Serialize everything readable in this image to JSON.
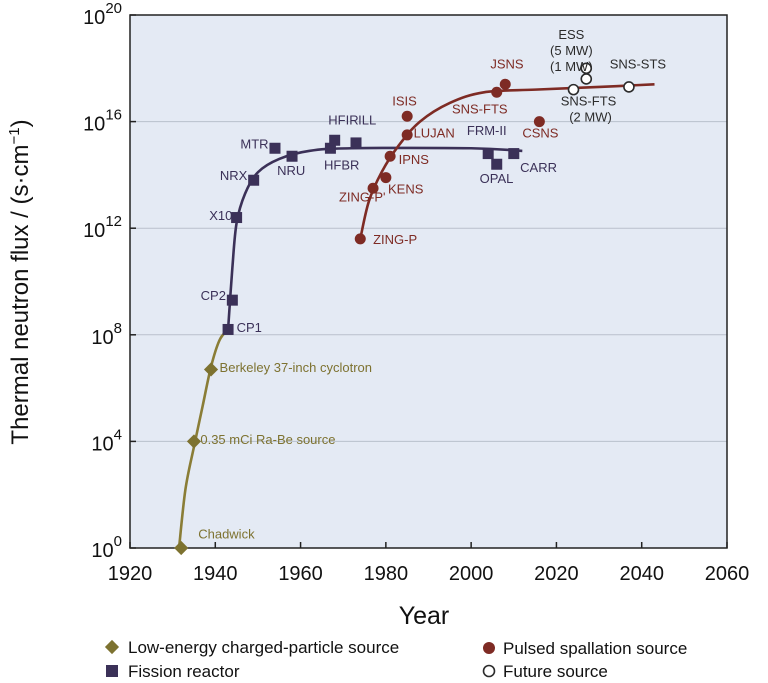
{
  "chart_data": {
    "type": "scatter",
    "xlabel": "Year",
    "ylabel_main": "Thermal neutron flux / (s·cm",
    "ylabel_sup": "−1",
    "ylabel_tail": ")",
    "xlim": [
      1920,
      2060
    ],
    "ylim_log10": [
      0,
      20
    ],
    "y_scale": "log",
    "grid": "horizontal",
    "x_ticks": [
      "1920",
      "1940",
      "1960",
      "1980",
      "2000",
      "2020",
      "2040",
      "2060"
    ],
    "y_ticks": [
      {
        "base": "10",
        "exp": "0"
      },
      {
        "base": "10",
        "exp": "4"
      },
      {
        "base": "10",
        "exp": "8"
      },
      {
        "base": "10",
        "exp": "12"
      },
      {
        "base": "10",
        "exp": "16"
      },
      {
        "base": "10",
        "exp": "20"
      }
    ],
    "colors": {
      "plot_bg": "#e4eaf4",
      "grid": "#b9c0cc",
      "charged": "#7d7230",
      "charged_line": "#8a7d36",
      "fission": "#3b3158",
      "spallation": "#7e2b24",
      "future_fill": "#ffffff",
      "future_stroke": "#2b2b2b"
    },
    "series": [
      {
        "name": "Low-energy charged-particle source",
        "marker": "diamond",
        "points": [
          {
            "label": "Chadwick",
            "x": 1932,
            "log10y": 0.0
          },
          {
            "label": "0.35 mCi Ra-Be source",
            "x": 1935,
            "log10y": 4.0
          },
          {
            "label": "Berkeley 37-inch cyclotron",
            "x": 1939,
            "log10y": 6.7
          }
        ]
      },
      {
        "name": "Fission reactor",
        "marker": "square",
        "points": [
          {
            "label": "CP1",
            "x": 1943,
            "log10y": 8.2
          },
          {
            "label": "CP2",
            "x": 1944,
            "log10y": 9.3
          },
          {
            "label": "X10",
            "x": 1945,
            "log10y": 12.4
          },
          {
            "label": "NRX",
            "x": 1949,
            "log10y": 13.8
          },
          {
            "label": "MTR",
            "x": 1954,
            "log10y": 15.0
          },
          {
            "label": "NRU",
            "x": 1958,
            "log10y": 14.7
          },
          {
            "label": "HFBR",
            "x": 1967,
            "log10y": 15.0
          },
          {
            "label": "HFIR",
            "x": 1968,
            "log10y": 15.3
          },
          {
            "label": "ILL",
            "x": 1973,
            "log10y": 15.2
          },
          {
            "label": "FRM-II",
            "x": 2004,
            "log10y": 14.8
          },
          {
            "label": "OPAL",
            "x": 2006,
            "log10y": 14.4
          },
          {
            "label": "CARR",
            "x": 2010,
            "log10y": 14.8
          }
        ]
      },
      {
        "name": "Pulsed spallation source",
        "marker": "circle",
        "points": [
          {
            "label": "ZING-P",
            "x": 1974,
            "log10y": 11.6
          },
          {
            "label": "ZING-P'",
            "x": 1977,
            "log10y": 13.5
          },
          {
            "label": "KENS",
            "x": 1980,
            "log10y": 13.9
          },
          {
            "label": "IPNS",
            "x": 1981,
            "log10y": 14.7
          },
          {
            "label": "LUJAN",
            "x": 1985,
            "log10y": 15.5
          },
          {
            "label": "ISIS",
            "x": 1985,
            "log10y": 16.2
          },
          {
            "label": "SNS-FTS",
            "x": 2006,
            "log10y": 17.1
          },
          {
            "label": "JSNS",
            "x": 2008,
            "log10y": 17.4
          },
          {
            "label": "CSNS",
            "x": 2016,
            "log10y": 16.0
          }
        ]
      },
      {
        "name": "Future source",
        "marker": "open-circle",
        "points": [
          {
            "label": "SNS-FTS (2 MW)",
            "x": 2024,
            "log10y": 17.2
          },
          {
            "label": "ESS (1 MW)",
            "x": 2027,
            "log10y": 17.6
          },
          {
            "label": "ESS (5 MW)",
            "x": 2027,
            "log10y": 18.0
          },
          {
            "label": "SNS-STS",
            "x": 2037,
            "log10y": 17.3
          }
        ]
      }
    ],
    "labels": [
      {
        "text": "Chadwick",
        "series": "charged",
        "x": 1936,
        "log10y": 0.35,
        "anchor": "start"
      },
      {
        "text": "0.35 mCi Ra-Be source",
        "series": "charged",
        "x": 1936.5,
        "log10y": 3.9,
        "anchor": "start"
      },
      {
        "text": "Berkeley 37-inch cyclotron",
        "series": "charged",
        "x": 1941,
        "log10y": 6.6,
        "anchor": "start"
      },
      {
        "text": "CP1",
        "series": "fission",
        "x": 1945,
        "log10y": 8.1,
        "anchor": "start"
      },
      {
        "text": "CP2",
        "series": "fission",
        "x": 1942.5,
        "log10y": 9.3,
        "anchor": "end"
      },
      {
        "text": "X10",
        "series": "fission",
        "x": 1944,
        "log10y": 12.3,
        "anchor": "end"
      },
      {
        "text": "NRX",
        "series": "fission",
        "x": 1947.5,
        "log10y": 13.8,
        "anchor": "end"
      },
      {
        "text": "MTR",
        "series": "fission",
        "x": 1952.5,
        "log10y": 15.0,
        "anchor": "end"
      },
      {
        "text": "NRU",
        "series": "fission",
        "x": 1954.5,
        "log10y": 14.0,
        "anchor": "start"
      },
      {
        "text": "HFIR",
        "series": "fission",
        "x": 1966.5,
        "log10y": 15.9,
        "anchor": "start"
      },
      {
        "text": "ILL",
        "series": "fission",
        "x": 1973.5,
        "log10y": 15.9,
        "anchor": "start"
      },
      {
        "text": "HFBR",
        "series": "fission",
        "x": 1965.5,
        "log10y": 14.2,
        "anchor": "start"
      },
      {
        "text": "FRM-II",
        "series": "fission",
        "x": 1999,
        "log10y": 15.5,
        "anchor": "start"
      },
      {
        "text": "OPAL",
        "series": "fission",
        "x": 2002,
        "log10y": 13.7,
        "anchor": "start"
      },
      {
        "text": "CARR",
        "series": "fission",
        "x": 2011.5,
        "log10y": 14.1,
        "anchor": "start"
      },
      {
        "text": "ISIS",
        "series": "spallation",
        "x": 1981.5,
        "log10y": 16.6,
        "anchor": "start"
      },
      {
        "text": "JSNS",
        "series": "spallation",
        "x": 2004.5,
        "log10y": 18.0,
        "anchor": "start"
      },
      {
        "text": "SNS-FTS",
        "series": "spallation",
        "x": 1995.5,
        "log10y": 16.3,
        "anchor": "start"
      },
      {
        "text": "LUJAN",
        "series": "spallation",
        "x": 1986.5,
        "log10y": 15.4,
        "anchor": "start"
      },
      {
        "text": "CSNS",
        "series": "spallation",
        "x": 2012,
        "log10y": 15.4,
        "anchor": "start"
      },
      {
        "text": "IPNS",
        "series": "spallation",
        "x": 1983,
        "log10y": 14.4,
        "anchor": "start"
      },
      {
        "text": "KENS",
        "series": "spallation",
        "x": 1980.5,
        "log10y": 13.3,
        "anchor": "start"
      },
      {
        "text": "ZING-P'",
        "series": "spallation",
        "x": 1969,
        "log10y": 13.0,
        "anchor": "start"
      },
      {
        "text": "ZING-P",
        "series": "spallation",
        "x": 1977,
        "log10y": 11.4,
        "anchor": "start"
      },
      {
        "text": "ESS",
        "series": "future",
        "x": 2023.5,
        "log10y": 19.1,
        "anchor": "middle"
      },
      {
        "text": "(5 MW)",
        "series": "future",
        "x": 2023.5,
        "log10y": 18.5,
        "anchor": "middle"
      },
      {
        "text": "(1 MW)",
        "series": "future",
        "x": 2023.5,
        "log10y": 17.9,
        "anchor": "middle"
      },
      {
        "text": "SNS-FTS",
        "series": "future",
        "x": 2021,
        "log10y": 16.6,
        "anchor": "start"
      },
      {
        "text": "(2 MW)",
        "series": "future",
        "x": 2023,
        "log10y": 16.0,
        "anchor": "start"
      },
      {
        "text": "SNS-STS",
        "series": "future",
        "x": 2032.5,
        "log10y": 18.0,
        "anchor": "start"
      }
    ],
    "curves": [
      {
        "series": "charged",
        "points": [
          [
            1931.5,
            0
          ],
          [
            1933,
            2.2
          ],
          [
            1935,
            3.8
          ],
          [
            1937,
            5.3
          ],
          [
            1939,
            6.8
          ],
          [
            1941,
            7.8
          ],
          [
            1943,
            8.2
          ]
        ]
      },
      {
        "series": "fission",
        "points": [
          [
            1943,
            8.2
          ],
          [
            1944,
            10.5
          ],
          [
            1945,
            12.2
          ],
          [
            1947,
            13.3
          ],
          [
            1950,
            14.1
          ],
          [
            1955,
            14.6
          ],
          [
            1962,
            14.9
          ],
          [
            1972,
            15.0
          ],
          [
            2000,
            15.0
          ],
          [
            2012,
            14.9
          ]
        ]
      },
      {
        "series": "spallation",
        "points": [
          [
            1974,
            11.6
          ],
          [
            1976,
            13.0
          ],
          [
            1979,
            14.1
          ],
          [
            1983,
            15.1
          ],
          [
            1988,
            16.0
          ],
          [
            1995,
            16.7
          ],
          [
            2003,
            17.1
          ],
          [
            2015,
            17.2
          ],
          [
            2030,
            17.3
          ],
          [
            2043,
            17.4
          ]
        ]
      }
    ],
    "legend": {
      "placement": "bottom",
      "entries": [
        {
          "text": "Low-energy charged-particle source",
          "marker": "diamond",
          "series": "charged"
        },
        {
          "text": "Fission reactor",
          "marker": "square",
          "series": "fission"
        },
        {
          "text": "Pulsed spallation source",
          "marker": "circle",
          "series": "spallation"
        },
        {
          "text": "Future source",
          "marker": "open-circle",
          "series": "future"
        }
      ]
    }
  }
}
